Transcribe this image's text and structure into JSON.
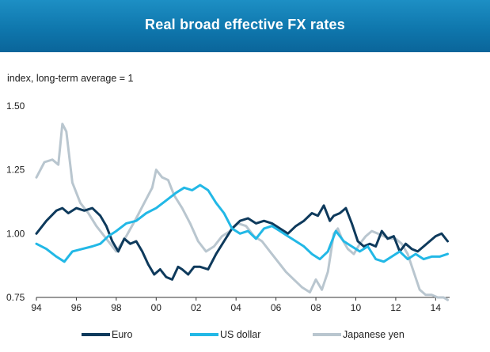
{
  "header": {
    "title": "Real broad effective FX rates"
  },
  "chart_data": {
    "type": "line",
    "title": "Real broad effective FX rates",
    "ylabel": "index, long-term average = 1",
    "xlabel": "",
    "ylim": [
      0.75,
      1.5
    ],
    "xlim": [
      1994.0,
      2014.7
    ],
    "yticks": [
      0.75,
      1.0,
      1.25,
      1.5
    ],
    "ytick_labels": [
      "0.75",
      "1.00",
      "1.25",
      "1.50"
    ],
    "xticks": [
      1994,
      1996,
      1998,
      2000,
      2002,
      2004,
      2006,
      2008,
      2010,
      2012,
      2014
    ],
    "xtick_labels": [
      "94",
      "96",
      "98",
      "00",
      "02",
      "04",
      "06",
      "08",
      "10",
      "12",
      "14"
    ],
    "grid": false,
    "legend_position": "bottom",
    "series": [
      {
        "name": "Euro",
        "color": "#0e3a5c",
        "x": [
          1994.0,
          1994.5,
          1995.0,
          1995.3,
          1995.6,
          1996.0,
          1996.4,
          1996.8,
          1997.2,
          1997.5,
          1997.8,
          1998.1,
          1998.4,
          1998.7,
          1999.0,
          1999.3,
          1999.6,
          1999.9,
          2000.2,
          2000.5,
          2000.8,
          2001.1,
          2001.3,
          2001.6,
          2001.9,
          2002.2,
          2002.6,
          2003.0,
          2003.4,
          2003.8,
          2004.2,
          2004.6,
          2005.0,
          2005.4,
          2005.8,
          2006.2,
          2006.6,
          2007.0,
          2007.4,
          2007.8,
          2008.1,
          2008.4,
          2008.7,
          2008.9,
          2009.2,
          2009.5,
          2009.8,
          2010.1,
          2010.4,
          2010.7,
          2011.0,
          2011.3,
          2011.6,
          2011.9,
          2012.2,
          2012.5,
          2012.8,
          2013.1,
          2013.4,
          2013.7,
          2014.0,
          2014.3,
          2014.6
        ],
        "values": [
          1.0,
          1.05,
          1.09,
          1.1,
          1.08,
          1.1,
          1.09,
          1.1,
          1.07,
          1.03,
          0.97,
          0.93,
          0.98,
          0.96,
          0.97,
          0.93,
          0.88,
          0.84,
          0.86,
          0.83,
          0.82,
          0.87,
          0.86,
          0.84,
          0.87,
          0.87,
          0.86,
          0.92,
          0.97,
          1.02,
          1.05,
          1.06,
          1.04,
          1.05,
          1.04,
          1.02,
          1.0,
          1.03,
          1.05,
          1.08,
          1.07,
          1.11,
          1.05,
          1.07,
          1.08,
          1.1,
          1.04,
          0.97,
          0.95,
          0.96,
          0.95,
          1.01,
          0.98,
          0.99,
          0.93,
          0.96,
          0.94,
          0.93,
          0.95,
          0.97,
          0.99,
          1.0,
          0.97
        ]
      },
      {
        "name": "US dollar",
        "color": "#22b8e6",
        "x": [
          1994.0,
          1994.5,
          1995.0,
          1995.4,
          1995.8,
          1996.3,
          1996.8,
          1997.2,
          1997.6,
          1998.0,
          1998.5,
          1999.0,
          1999.5,
          2000.0,
          2000.5,
          2001.0,
          2001.4,
          2001.8,
          2002.2,
          2002.6,
          2003.0,
          2003.4,
          2003.8,
          2004.2,
          2004.6,
          2005.0,
          2005.4,
          2005.8,
          2006.2,
          2006.6,
          2007.0,
          2007.4,
          2007.8,
          2008.2,
          2008.6,
          2009.0,
          2009.4,
          2009.8,
          2010.2,
          2010.6,
          2011.0,
          2011.4,
          2011.8,
          2012.2,
          2012.6,
          2013.0,
          2013.4,
          2013.8,
          2014.2,
          2014.6
        ],
        "values": [
          0.96,
          0.94,
          0.91,
          0.89,
          0.93,
          0.94,
          0.95,
          0.96,
          0.99,
          1.01,
          1.04,
          1.05,
          1.08,
          1.1,
          1.13,
          1.16,
          1.18,
          1.17,
          1.19,
          1.17,
          1.12,
          1.08,
          1.02,
          1.0,
          1.01,
          0.98,
          1.02,
          1.03,
          1.01,
          0.99,
          0.97,
          0.95,
          0.92,
          0.9,
          0.93,
          1.01,
          0.97,
          0.95,
          0.93,
          0.95,
          0.9,
          0.89,
          0.91,
          0.93,
          0.9,
          0.92,
          0.9,
          0.91,
          0.91,
          0.92
        ]
      },
      {
        "name": "Japanese yen",
        "color": "#b9c6cf",
        "x": [
          1994.0,
          1994.4,
          1994.8,
          1995.1,
          1995.3,
          1995.5,
          1995.8,
          1996.2,
          1996.6,
          1997.0,
          1997.5,
          1998.0,
          1998.5,
          1999.0,
          1999.4,
          1999.8,
          2000.0,
          2000.3,
          2000.6,
          2000.9,
          2001.3,
          2001.7,
          2002.1,
          2002.5,
          2002.9,
          2003.3,
          2003.7,
          2004.1,
          2004.5,
          2004.9,
          2005.3,
          2005.7,
          2006.1,
          2006.5,
          2006.9,
          2007.3,
          2007.7,
          2008.0,
          2008.3,
          2008.6,
          2008.9,
          2009.1,
          2009.3,
          2009.6,
          2009.9,
          2010.2,
          2010.5,
          2010.8,
          2011.1,
          2011.4,
          2011.7,
          2012.0,
          2012.3,
          2012.6,
          2012.9,
          2013.2,
          2013.5,
          2013.8,
          2014.1,
          2014.4,
          2014.6
        ],
        "values": [
          1.22,
          1.28,
          1.29,
          1.27,
          1.43,
          1.4,
          1.2,
          1.12,
          1.08,
          1.03,
          0.98,
          0.93,
          0.99,
          1.06,
          1.12,
          1.18,
          1.25,
          1.22,
          1.21,
          1.15,
          1.1,
          1.04,
          0.97,
          0.93,
          0.95,
          0.99,
          1.01,
          1.04,
          1.03,
          0.99,
          0.97,
          0.93,
          0.89,
          0.85,
          0.82,
          0.79,
          0.77,
          0.82,
          0.78,
          0.85,
          1.0,
          1.02,
          0.98,
          0.94,
          0.92,
          0.96,
          0.99,
          1.01,
          1.0,
          0.99,
          0.98,
          0.98,
          0.96,
          0.92,
          0.85,
          0.78,
          0.76,
          0.76,
          0.75,
          0.75,
          0.74
        ]
      }
    ]
  }
}
